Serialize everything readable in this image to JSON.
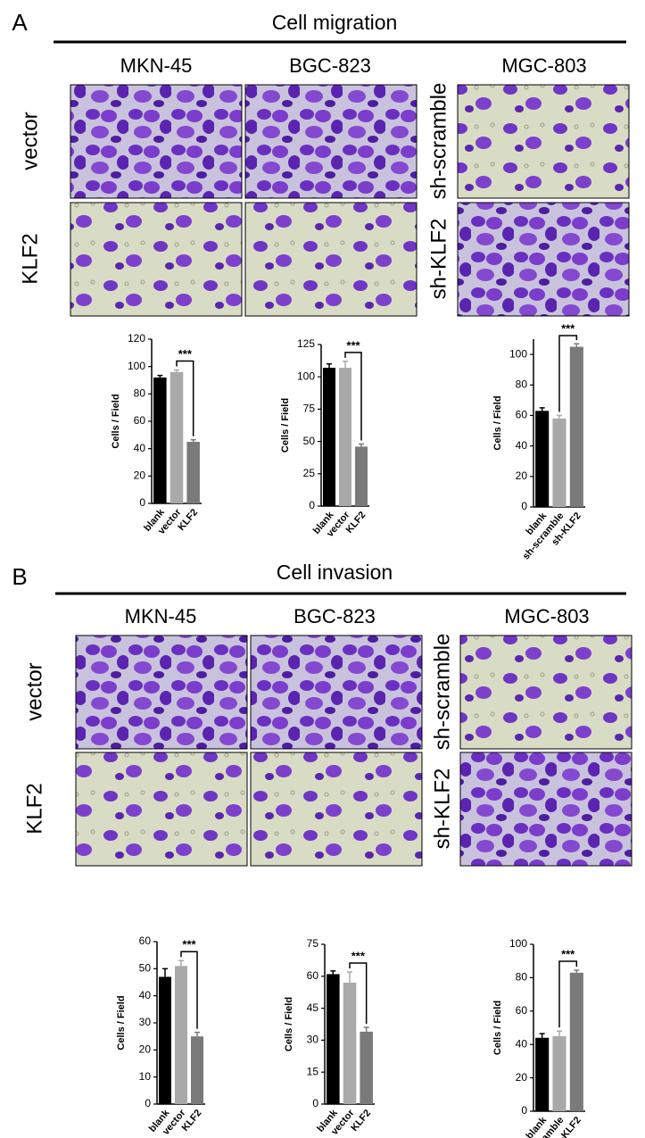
{
  "panels": [
    {
      "label": "A",
      "title": "Cell migration",
      "cell_lines": [
        "MKN-45",
        "BGC-823",
        "MGC-803"
      ],
      "row_labels": [
        "vector",
        "KLF2",
        "sh-scramble",
        "sh-KLF2"
      ]
    },
    {
      "label": "B",
      "title": "Cell invasion",
      "cell_lines": [
        "MKN-45",
        "BGC-823",
        "MGC-803"
      ],
      "row_labels": [
        "vector",
        "KLF2",
        "sh-scramble",
        "sh-KLF2"
      ]
    }
  ],
  "chart_data": [
    {
      "type": "bar",
      "ylabel": "Cells / Field",
      "categories": [
        "blank",
        "vector",
        "KLF2"
      ],
      "values": [
        92,
        96,
        45
      ],
      "errors": [
        1.5,
        1.5,
        1.5
      ],
      "colors": [
        "#000000",
        "#a9a9a9",
        "#7a7a7a"
      ],
      "ylim": [
        0,
        120
      ],
      "yticks": [
        0,
        20,
        40,
        60,
        80,
        100,
        120
      ],
      "annotation": "***"
    },
    {
      "type": "bar",
      "ylabel": "Cells / Field",
      "categories": [
        "blank",
        "vector",
        "KLF2"
      ],
      "values": [
        107,
        107,
        46
      ],
      "errors": [
        3,
        5,
        2
      ],
      "colors": [
        "#000000",
        "#a9a9a9",
        "#7a7a7a"
      ],
      "ylim": [
        0,
        125
      ],
      "yticks": [
        0,
        25,
        50,
        75,
        100,
        125
      ],
      "annotation": "***"
    },
    {
      "type": "bar",
      "ylabel": "Cells / Field",
      "categories": [
        "blank",
        "sh-scramble",
        "sh-KLF2"
      ],
      "values": [
        63,
        58,
        105
      ],
      "errors": [
        2,
        2,
        2
      ],
      "colors": [
        "#000000",
        "#a9a9a9",
        "#7a7a7a"
      ],
      "ylim": [
        0,
        110
      ],
      "yticks": [
        0,
        20,
        40,
        60,
        80,
        100
      ],
      "annotation": "***"
    },
    {
      "type": "bar",
      "ylabel": "Cells / Field",
      "categories": [
        "blank",
        "vector",
        "KLF2"
      ],
      "values": [
        47,
        51,
        25
      ],
      "errors": [
        3,
        2,
        1.5
      ],
      "colors": [
        "#000000",
        "#a9a9a9",
        "#7a7a7a"
      ],
      "ylim": [
        0,
        60
      ],
      "yticks": [
        0,
        10,
        20,
        30,
        40,
        50,
        60
      ],
      "annotation": "***"
    },
    {
      "type": "bar",
      "ylabel": "Cells / Field",
      "categories": [
        "blank",
        "vector",
        "KLF2"
      ],
      "values": [
        61,
        57,
        34
      ],
      "errors": [
        1.5,
        5,
        2
      ],
      "colors": [
        "#000000",
        "#a9a9a9",
        "#7a7a7a"
      ],
      "ylim": [
        0,
        75
      ],
      "yticks": [
        0,
        15,
        30,
        45,
        60,
        75
      ],
      "annotation": "***"
    },
    {
      "type": "bar",
      "ylabel": "Cells / Field",
      "categories": [
        "blank",
        "sh-scramble",
        "sh-KLF2"
      ],
      "values": [
        44,
        45,
        83
      ],
      "errors": [
        2.5,
        3,
        1.5
      ],
      "colors": [
        "#000000",
        "#a9a9a9",
        "#7a7a7a"
      ],
      "ylim": [
        0,
        100
      ],
      "yticks": [
        0,
        20,
        40,
        60,
        80,
        100
      ],
      "annotation": "***"
    }
  ]
}
